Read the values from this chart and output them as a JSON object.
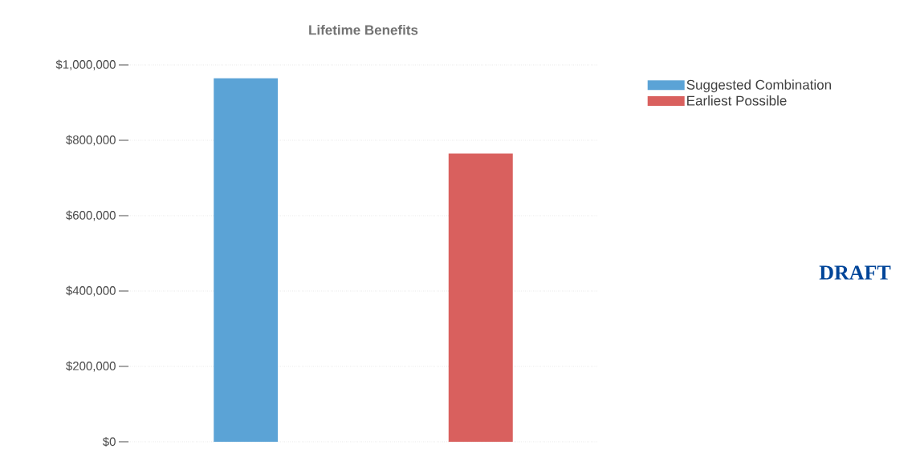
{
  "chart_data": {
    "type": "bar",
    "title": "Lifetime Benefits",
    "categories": [
      null,
      null
    ],
    "series": [
      {
        "name": "Suggested Combination",
        "color": "#5ba3d6",
        "values": [
          965000,
          null
        ]
      },
      {
        "name": "Earliest Possible",
        "color": "#d9605e",
        "values": [
          null,
          765000
        ]
      }
    ],
    "ylim": [
      0,
      1000000
    ],
    "yticks": [
      {
        "value": 0,
        "label": "$0"
      },
      {
        "value": 200000,
        "label": "$200,000"
      },
      {
        "value": 400000,
        "label": "$400,000"
      },
      {
        "value": 600000,
        "label": "$600,000"
      },
      {
        "value": 800000,
        "label": "$800,000"
      },
      {
        "value": 1000000,
        "label": "$1,000,000"
      }
    ],
    "grid": "y",
    "legend": "top right",
    "annotations": [
      "DRAFT"
    ]
  }
}
